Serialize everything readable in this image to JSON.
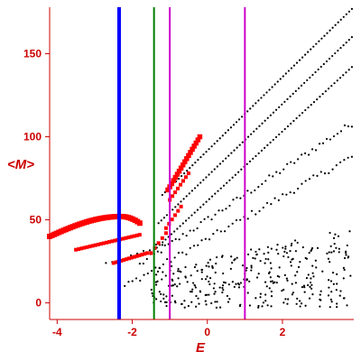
{
  "chart_data": {
    "type": "scatter",
    "xlabel": "E",
    "ylabel": "<M>",
    "xlim": [
      -4.2,
      3.9
    ],
    "ylim": [
      -10,
      178
    ],
    "xticks": [
      "-4",
      "-2",
      "0",
      "2"
    ],
    "xtick_values": [
      -4,
      -2,
      0,
      2
    ],
    "yticks": [
      "0",
      "50",
      "100",
      "150"
    ],
    "ytick_values": [
      0,
      50,
      100,
      150
    ],
    "grid": false,
    "colors": {
      "axis": "#cc0000",
      "red_series": "#ff0000",
      "black_series": "#000000"
    },
    "vertical_lines": [
      {
        "x": -2.35,
        "color": "#0000ff",
        "width": 4
      },
      {
        "x": -1.42,
        "color": "#008000",
        "width": 2
      },
      {
        "x": -1.0,
        "color": "#cc00cc",
        "width": 2
      },
      {
        "x": 1.0,
        "color": "#cc00cc",
        "width": 2
      }
    ],
    "series": [
      {
        "color": "#ff0000",
        "marker": "square",
        "curves": [
          {
            "x_start": -4.2,
            "x_end": -1.8,
            "y_start": 40,
            "y_end": 48,
            "peak_x": -2.3,
            "peak_y": 52,
            "n": 40
          },
          {
            "x_start": -3.5,
            "x_end": -1.8,
            "y_start": 32,
            "y_end": 41,
            "n": 24
          },
          {
            "x_start": -2.5,
            "x_end": -1.6,
            "y_start": 24,
            "y_end": 30,
            "n": 14
          },
          {
            "x_start": -1.05,
            "x_end": -0.2,
            "y_start": 68,
            "y_end": 100,
            "n": 18
          },
          {
            "x_start": -1.0,
            "x_end": -0.5,
            "y_start": 62,
            "y_end": 78,
            "n": 8
          },
          {
            "x_start": -1.1,
            "x_end": -0.7,
            "y_start": 45,
            "y_end": 58,
            "n": 6
          },
          {
            "x_start": -1.5,
            "x_end": -1.1,
            "y_start": 30,
            "y_end": 42,
            "n": 5
          }
        ]
      },
      {
        "color": "#000000",
        "marker": "dot",
        "lines": [
          {
            "x_start": -1.2,
            "x_end": 3.85,
            "y_start": 65,
            "y_end": 177,
            "n": 70
          },
          {
            "x_start": -1.3,
            "x_end": 3.85,
            "y_start": 48,
            "y_end": 160,
            "n": 70
          },
          {
            "x_start": -1.5,
            "x_end": 3.85,
            "y_start": 30,
            "y_end": 142,
            "n": 70
          },
          {
            "x_start": -1.8,
            "x_end": 3.85,
            "y_start": 23,
            "y_end": 108,
            "n": 60
          },
          {
            "x_start": -2.7,
            "x_end": -1.2,
            "y_start": 25,
            "y_end": 35,
            "n": 10
          },
          {
            "x_start": -2.2,
            "x_end": 3.85,
            "y_start": 10,
            "y_end": 88,
            "n": 60
          }
        ],
        "scatter_region": {
          "x_min": -1.5,
          "x_max": 3.85,
          "y_min": -3,
          "y_max": 45,
          "n": 320
        }
      }
    ]
  }
}
